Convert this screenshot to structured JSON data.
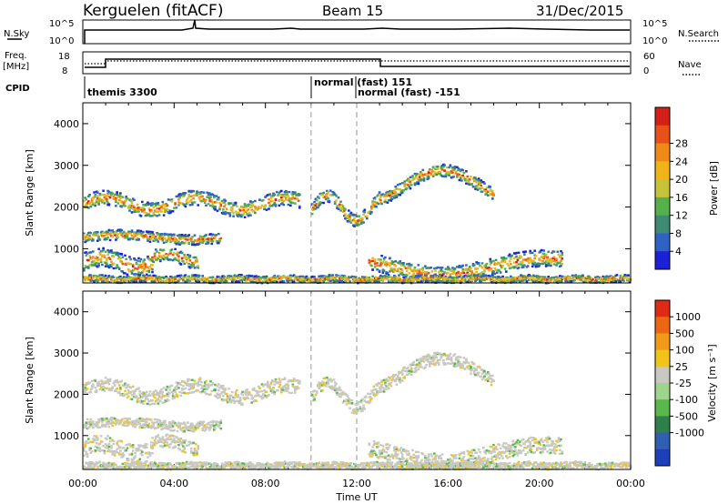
{
  "header": {
    "station": "Kerguelen (fitACF)",
    "beam": "Beam 15",
    "date": "31/Dec/2015"
  },
  "top_panels": {
    "nsky_label": "N.Sky",
    "nsky_ticks": [
      "10^5",
      "10^0"
    ],
    "nsearch_label": "N.Search",
    "nsearch_ticks": [
      "10^5",
      "10^0"
    ],
    "freq_label_line1": "Freq.",
    "freq_label_line2": "[MHz]",
    "freq_ticks": [
      "18",
      "8"
    ],
    "nave_label": "Nave",
    "nave_ticks": [
      "60",
      "0"
    ],
    "cpid_label": "CPID",
    "cpid_entries": [
      {
        "text": "themis 3300"
      },
      {
        "text": "normal (fast) 151"
      },
      {
        "text": "normal (fast) -151"
      }
    ]
  },
  "x_axis": {
    "label": "Time UT",
    "ticks": [
      "00:00",
      "04:00",
      "08:00",
      "12:00",
      "16:00",
      "20:00",
      "00:00"
    ]
  },
  "chart_data": [
    {
      "type": "heatmap",
      "quantity": "Power",
      "colorbar_label": "Power [dB]",
      "ylabel": "Slant Range [km]",
      "xlabel": "",
      "xlim_hours": [
        0,
        24
      ],
      "ylim": [
        180,
        4500
      ],
      "y_ticks": [
        "1000",
        "2000",
        "3000",
        "4000"
      ],
      "y_tick_values": [
        1000,
        2000,
        3000,
        4000
      ],
      "colorbar_ticks": [
        "4",
        "8",
        "12",
        "16",
        "20",
        "24",
        "28"
      ],
      "colorbar_colors": [
        "#1b22d6",
        "#2e62c4",
        "#3e8a72",
        "#55b04a",
        "#c6c23a",
        "#f0b419",
        "#f08a17",
        "#e8511a",
        "#d42016"
      ],
      "mode_change_hours": [
        10,
        12
      ]
    },
    {
      "type": "heatmap",
      "quantity": "Velocity",
      "colorbar_label": "Velocity [m s⁻¹]",
      "ylabel": "Slant Range [km]",
      "xlabel": "Time UT",
      "xlim_hours": [
        0,
        24
      ],
      "ylim": [
        180,
        4500
      ],
      "y_ticks": [
        "1000",
        "2000",
        "3000",
        "4000"
      ],
      "y_tick_values": [
        1000,
        2000,
        3000,
        4000
      ],
      "colorbar_ticks": [
        "1000",
        "500",
        "100",
        "25",
        "-25",
        "-100",
        "-500",
        "-1000"
      ],
      "colorbar_colors": [
        "#1d3fb8",
        "#2f5fb0",
        "#2f7f4a",
        "#58b94a",
        "#9fd58a",
        "#c8c8c0",
        "#f0c418",
        "#f09a18",
        "#ec6614",
        "#e02a14"
      ],
      "mode_change_hours": [
        10,
        12
      ]
    }
  ]
}
